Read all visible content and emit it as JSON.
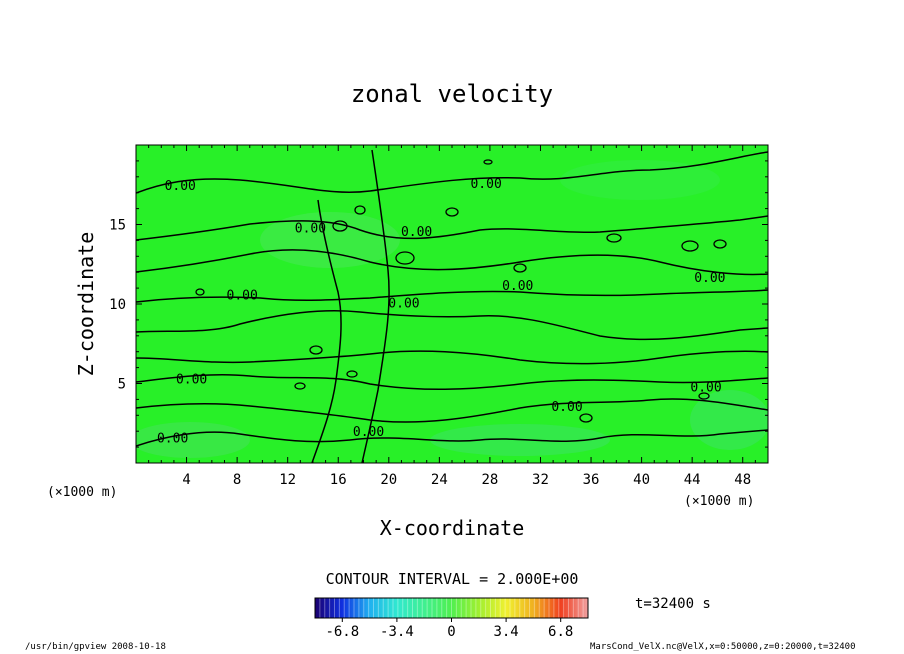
{
  "chart_data": {
    "type": "heatmap",
    "title": "zonal velocity",
    "xlabel": "X-coordinate",
    "ylabel": "Z-coordinate",
    "x_unit": "(×1000 m)",
    "y_unit": "(×1000 m)",
    "xlim": [
      0,
      50
    ],
    "ylim": [
      0,
      20
    ],
    "x_ticks": [
      "4",
      "8",
      "12",
      "16",
      "20",
      "24",
      "28",
      "32",
      "36",
      "40",
      "44",
      "48"
    ],
    "y_ticks": [
      "5",
      "10",
      "15"
    ],
    "contour_interval_label": "CONTOUR INTERVAL = 2.000E+00",
    "contour_labels": [
      {
        "text": "0.00",
        "x": 3.5,
        "z": 17.5
      },
      {
        "text": "0.00",
        "x": 27.7,
        "z": 17.6
      },
      {
        "text": "0.00",
        "x": 13.8,
        "z": 14.8
      },
      {
        "text": "0.00",
        "x": 22.2,
        "z": 14.6
      },
      {
        "text": "0.00",
        "x": 8.4,
        "z": 10.6
      },
      {
        "text": "0.00",
        "x": 21.2,
        "z": 10.1
      },
      {
        "text": "0.00",
        "x": 30.2,
        "z": 11.2
      },
      {
        "text": "0.00",
        "x": 45.4,
        "z": 11.7
      },
      {
        "text": "0.00",
        "x": 4.4,
        "z": 5.3
      },
      {
        "text": "0.00",
        "x": 45.1,
        "z": 4.8
      },
      {
        "text": "0.00",
        "x": 34.1,
        "z": 3.6
      },
      {
        "text": "0.00",
        "x": 18.4,
        "z": 2.0
      },
      {
        "text": "0.00",
        "x": 2.9,
        "z": 1.6
      }
    ],
    "colorbar": {
      "range": [
        -8.5,
        8.5
      ],
      "ticks": [
        "-6.8",
        "-3.4",
        "0",
        "3.4",
        "6.8"
      ],
      "tick_values": [
        -6.8,
        -3.4,
        0,
        3.4,
        6.8
      ],
      "colors": [
        "#1a0070",
        "#1030e0",
        "#20b0f0",
        "#30e8d0",
        "#40f090",
        "#50f050",
        "#a0f030",
        "#f0f030",
        "#f0b020",
        "#f04020",
        "#f0a0a0"
      ]
    },
    "field_color": "#28f028",
    "grid": false
  },
  "time_label": "t=32400 s",
  "footer_left": "/usr/bin/gpview  2008-10-18",
  "footer_right": "MarsCond_VelX.nc@VelX,x=0:50000,z=0:20000,t=32400"
}
